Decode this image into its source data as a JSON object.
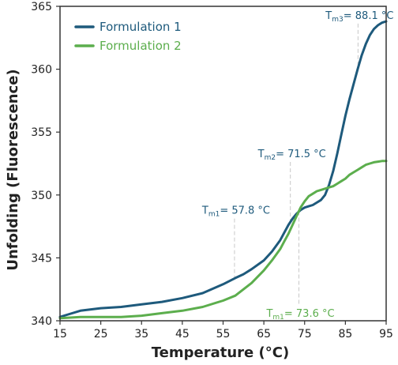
{
  "chart_data": {
    "type": "line",
    "title": "",
    "xlabel": "Temperature (°C)",
    "ylabel": "Unfolding (Fluorescence)",
    "xlim": [
      15,
      95
    ],
    "ylim": [
      340,
      365
    ],
    "xticks": [
      15,
      25,
      35,
      45,
      55,
      65,
      75,
      85,
      95
    ],
    "yticks": [
      340,
      345,
      350,
      355,
      360,
      365
    ],
    "grid": false,
    "legend_position": "top-left",
    "series": [
      {
        "name": "Formulation 1",
        "color": "#1e5a7c",
        "x": [
          15,
          17,
          20,
          25,
          30,
          35,
          40,
          45,
          50,
          55,
          58,
          60,
          62,
          65,
          67,
          69,
          70,
          71,
          72,
          73,
          74,
          75,
          76,
          77,
          78,
          79,
          80,
          81,
          82,
          83,
          84,
          85,
          86,
          87,
          88,
          89,
          90,
          91,
          92,
          93,
          94,
          95
        ],
        "y": [
          340.3,
          340.5,
          340.8,
          341.0,
          341.1,
          341.3,
          341.5,
          341.8,
          342.2,
          342.9,
          343.4,
          343.7,
          344.1,
          344.8,
          345.5,
          346.4,
          347.0,
          347.6,
          348.1,
          348.5,
          348.8,
          349.0,
          349.1,
          349.2,
          349.4,
          349.6,
          350.0,
          350.8,
          351.9,
          353.3,
          354.8,
          356.3,
          357.6,
          358.8,
          360.0,
          361.1,
          362.0,
          362.7,
          363.2,
          363.5,
          363.7,
          363.8
        ]
      },
      {
        "name": "Formulation 2",
        "color": "#5cae4d",
        "x": [
          15,
          20,
          25,
          30,
          35,
          40,
          45,
          50,
          55,
          58,
          60,
          62,
          65,
          67,
          69,
          70,
          71,
          72,
          73,
          74,
          75,
          76,
          77,
          78,
          79,
          80,
          81,
          82,
          83,
          84,
          85,
          86,
          87,
          88,
          89,
          90,
          91,
          92,
          93,
          94,
          95
        ],
        "y": [
          340.2,
          340.3,
          340.3,
          340.3,
          340.4,
          340.6,
          340.8,
          341.1,
          341.6,
          342.0,
          342.5,
          343.0,
          344.0,
          344.8,
          345.7,
          346.3,
          346.9,
          347.6,
          348.3,
          349.0,
          349.5,
          349.9,
          350.1,
          350.3,
          350.4,
          350.5,
          350.6,
          350.7,
          350.9,
          351.1,
          351.3,
          351.6,
          351.8,
          352.0,
          352.2,
          352.4,
          352.5,
          352.6,
          352.65,
          352.7,
          352.7
        ]
      }
    ],
    "annotations": [
      {
        "main": "T",
        "sub": "m1",
        "rest": "= 57.8 °C",
        "x": 57.8,
        "label_y": 348.5,
        "line_to": 343.3,
        "series": 0
      },
      {
        "main": "T",
        "sub": "m2",
        "rest": "= 71.5 °C",
        "x": 71.5,
        "label_y": 353.0,
        "line_to": 347.9,
        "series": 0
      },
      {
        "main": "T",
        "sub": "m3",
        "rest": "= 88.1 °C",
        "x": 88.1,
        "label_y": 364.0,
        "line_to": 360.2,
        "series": 0
      },
      {
        "main": "T",
        "sub": "m1",
        "rest": "= 73.6 °C",
        "x": 73.6,
        "label_y": 340.3,
        "line_to": 348.7,
        "series": 1
      }
    ]
  }
}
